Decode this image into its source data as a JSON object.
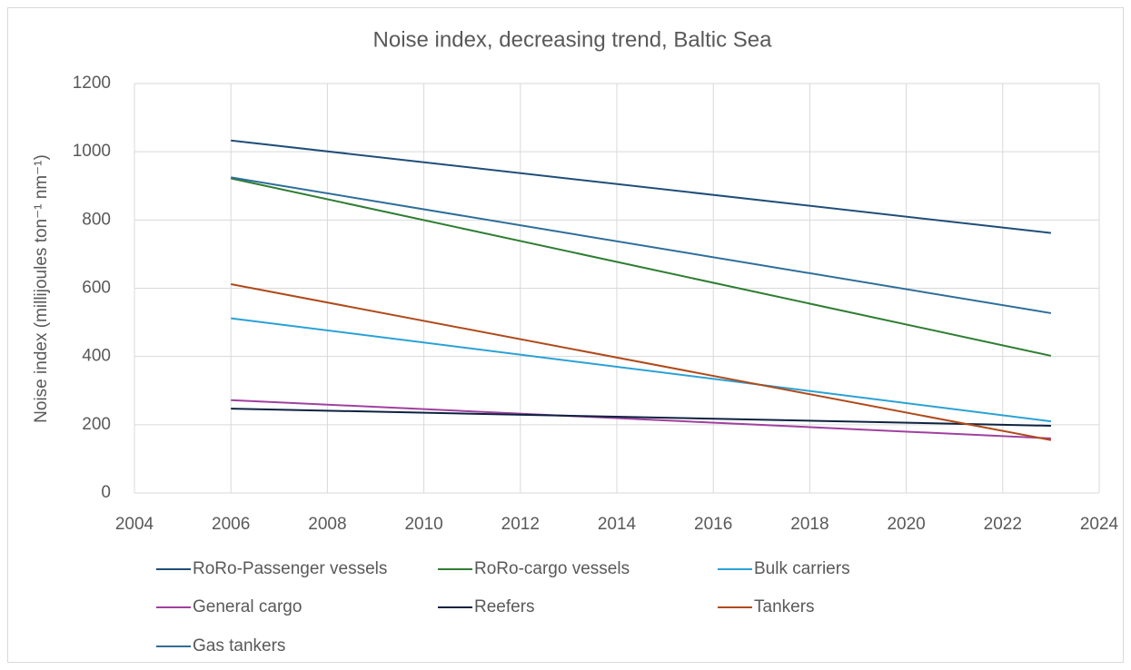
{
  "chart_data": {
    "type": "line",
    "title": "Noise index, decreasing trend, Baltic Sea",
    "y_label": "Noise index (millijoules ton⁻¹ nm⁻¹)",
    "x": [
      2006,
      2023
    ],
    "xlim": [
      2004,
      2024
    ],
    "xticks": [
      2004,
      2006,
      2008,
      2010,
      2012,
      2014,
      2016,
      2018,
      2020,
      2022,
      2024
    ],
    "ylim": [
      0,
      1200
    ],
    "yticks": [
      0,
      200,
      400,
      600,
      800,
      1000,
      1200
    ],
    "grid": true,
    "legend": "bottom",
    "series": [
      {
        "name": "RoRo-Passenger vessels",
        "color": "#1f4e79",
        "values": [
          1033,
          762
        ]
      },
      {
        "name": "RoRo-cargo vessels",
        "color": "#2e7d32",
        "values": [
          922,
          402
        ]
      },
      {
        "name": "Bulk carriers",
        "color": "#2aa1d6",
        "values": [
          512,
          210
        ]
      },
      {
        "name": "General cargo",
        "color": "#a040a0",
        "values": [
          272,
          160
        ]
      },
      {
        "name": "Reefers",
        "color": "#0d2240",
        "values": [
          247,
          197
        ]
      },
      {
        "name": "Tankers",
        "color": "#b04a1a",
        "values": [
          612,
          155
        ]
      },
      {
        "name": "Gas tankers",
        "color": "#2e6e99",
        "values": [
          925,
          527
        ]
      }
    ]
  }
}
